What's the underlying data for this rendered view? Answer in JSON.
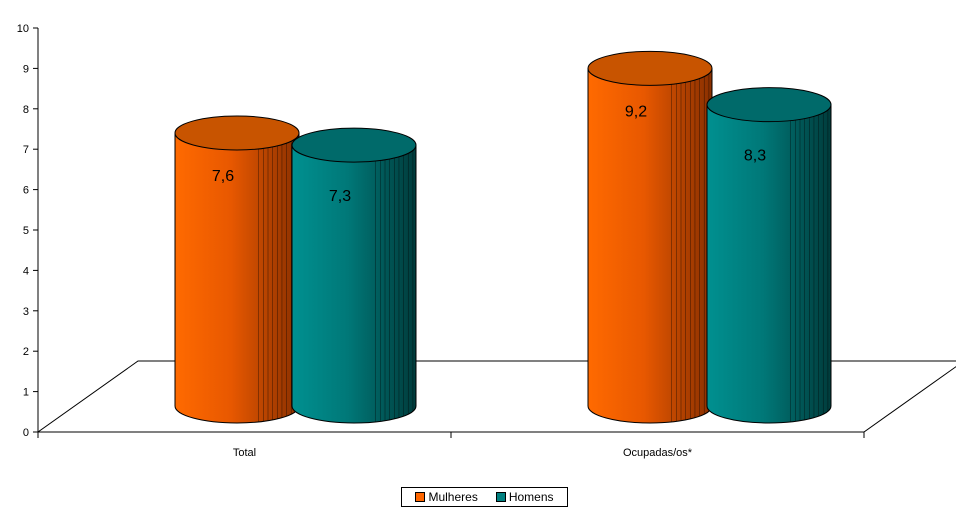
{
  "chart_data": {
    "type": "bar",
    "categories": [
      "Total",
      "Ocupadas/os*"
    ],
    "series": [
      {
        "name": "Mulheres",
        "values": [
          7.6,
          9.2
        ],
        "labels": [
          "7,6",
          "9,2"
        ],
        "color": "#ff6600"
      },
      {
        "name": "Homens",
        "values": [
          7.3,
          8.3
        ],
        "labels": [
          "7,3",
          "8,3"
        ],
        "color": "#008080"
      }
    ],
    "ylim": [
      0,
      10
    ],
    "yticks": [
      "0",
      "1",
      "2",
      "3",
      "4",
      "5",
      "6",
      "7",
      "8",
      "9",
      "10"
    ],
    "grid": false,
    "legend_position": "bottom"
  }
}
